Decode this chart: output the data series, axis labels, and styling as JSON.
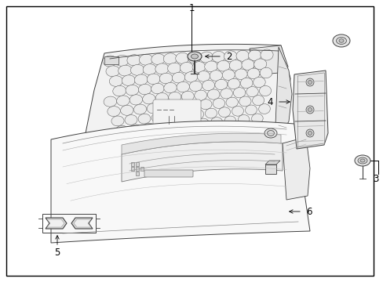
{
  "bg_color": "#ffffff",
  "border_color": "#000000",
  "line_color": "#404040",
  "label_color": "#000000",
  "fig_width": 4.89,
  "fig_height": 3.6,
  "dpi": 100,
  "label_fontsize": 8.5
}
